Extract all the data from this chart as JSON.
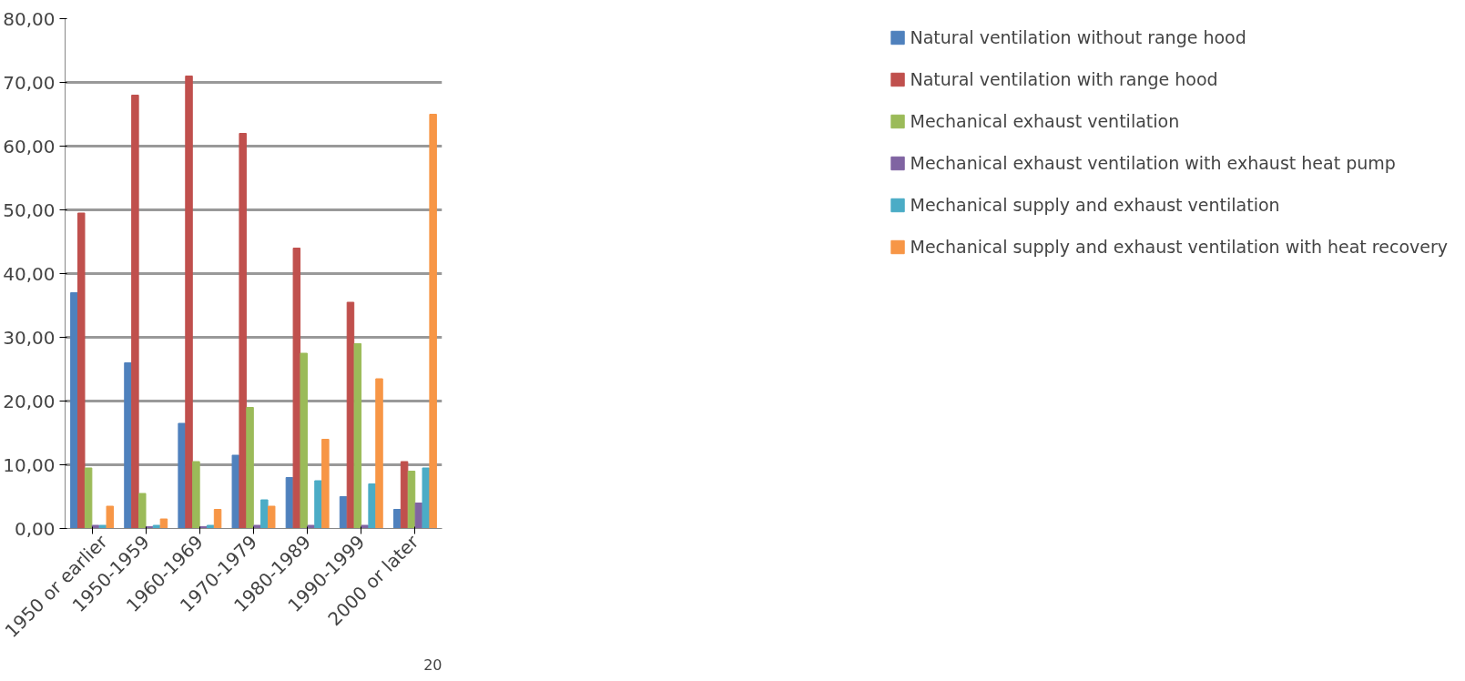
{
  "chart_data": {
    "type": "bar",
    "categories": [
      "1950 or earlier",
      "1950-1959",
      "1960-1969",
      "1970-1979",
      "1980-1989",
      "1990-1999",
      "2000 or later"
    ],
    "series": [
      {
        "name": "Natural ventilation without range hood",
        "color": "#4f81bd",
        "values": [
          37,
          26,
          16.5,
          11.5,
          8,
          5,
          3
        ]
      },
      {
        "name": "Natural ventilation with range hood",
        "color": "#c0504d",
        "values": [
          49.5,
          68,
          71,
          62,
          44,
          35.5,
          10.5
        ]
      },
      {
        "name": "Mechanical exhaust ventilation",
        "color": "#9bbb59",
        "values": [
          9.5,
          5.5,
          10.5,
          19,
          27.5,
          29,
          9
        ]
      },
      {
        "name": "Mechanical exhaust ventilation with exhaust heat pump",
        "color": "#8064a2",
        "values": [
          0.5,
          0.3,
          0.3,
          0.5,
          0.5,
          0.5,
          4
        ]
      },
      {
        "name": "Mechanical supply and exhaust ventilation",
        "color": "#4bacc6",
        "values": [
          0.5,
          0.5,
          0.5,
          4.5,
          7.5,
          7,
          9.5
        ]
      },
      {
        "name": "Mechanical supply and exhaust ventilation with heat recovery",
        "color": "#f79646",
        "values": [
          3.5,
          1.5,
          3,
          3.5,
          14,
          23.5,
          65
        ]
      }
    ],
    "ylim": [
      0,
      80
    ],
    "yticks": [
      {
        "value": 0,
        "label": "0,00"
      },
      {
        "value": 10,
        "label": "10,00"
      },
      {
        "value": 20,
        "label": "20,00"
      },
      {
        "value": 30,
        "label": "30,00"
      },
      {
        "value": 40,
        "label": "40,00"
      },
      {
        "value": 50,
        "label": "50,00"
      },
      {
        "value": 60,
        "label": "60,00"
      },
      {
        "value": 70,
        "label": "70,00"
      },
      {
        "value": 80,
        "label": "80,00"
      }
    ],
    "grid": "y",
    "legend": "right",
    "annotations": [
      "20"
    ]
  }
}
